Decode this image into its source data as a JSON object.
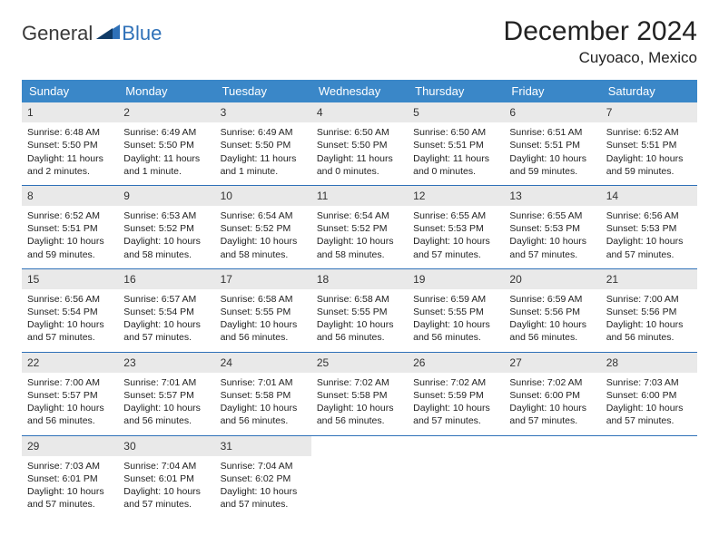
{
  "logo": {
    "general": "General",
    "blue": "Blue"
  },
  "title": "December 2024",
  "location": "Cuyoaco, Mexico",
  "colors": {
    "header_bg": "#3a87c8",
    "header_text": "#ffffff",
    "daynum_bg": "#e9e9e9",
    "rule": "#2f71b8",
    "logo_blue": "#2f71b8",
    "logo_dark": "#0f3a66"
  },
  "weekdays": [
    "Sunday",
    "Monday",
    "Tuesday",
    "Wednesday",
    "Thursday",
    "Friday",
    "Saturday"
  ],
  "weeks": [
    [
      {
        "n": "1",
        "sunrise": "Sunrise: 6:48 AM",
        "sunset": "Sunset: 5:50 PM",
        "daylight": "Daylight: 11 hours and 2 minutes."
      },
      {
        "n": "2",
        "sunrise": "Sunrise: 6:49 AM",
        "sunset": "Sunset: 5:50 PM",
        "daylight": "Daylight: 11 hours and 1 minute."
      },
      {
        "n": "3",
        "sunrise": "Sunrise: 6:49 AM",
        "sunset": "Sunset: 5:50 PM",
        "daylight": "Daylight: 11 hours and 1 minute."
      },
      {
        "n": "4",
        "sunrise": "Sunrise: 6:50 AM",
        "sunset": "Sunset: 5:50 PM",
        "daylight": "Daylight: 11 hours and 0 minutes."
      },
      {
        "n": "5",
        "sunrise": "Sunrise: 6:50 AM",
        "sunset": "Sunset: 5:51 PM",
        "daylight": "Daylight: 11 hours and 0 minutes."
      },
      {
        "n": "6",
        "sunrise": "Sunrise: 6:51 AM",
        "sunset": "Sunset: 5:51 PM",
        "daylight": "Daylight: 10 hours and 59 minutes."
      },
      {
        "n": "7",
        "sunrise": "Sunrise: 6:52 AM",
        "sunset": "Sunset: 5:51 PM",
        "daylight": "Daylight: 10 hours and 59 minutes."
      }
    ],
    [
      {
        "n": "8",
        "sunrise": "Sunrise: 6:52 AM",
        "sunset": "Sunset: 5:51 PM",
        "daylight": "Daylight: 10 hours and 59 minutes."
      },
      {
        "n": "9",
        "sunrise": "Sunrise: 6:53 AM",
        "sunset": "Sunset: 5:52 PM",
        "daylight": "Daylight: 10 hours and 58 minutes."
      },
      {
        "n": "10",
        "sunrise": "Sunrise: 6:54 AM",
        "sunset": "Sunset: 5:52 PM",
        "daylight": "Daylight: 10 hours and 58 minutes."
      },
      {
        "n": "11",
        "sunrise": "Sunrise: 6:54 AM",
        "sunset": "Sunset: 5:52 PM",
        "daylight": "Daylight: 10 hours and 58 minutes."
      },
      {
        "n": "12",
        "sunrise": "Sunrise: 6:55 AM",
        "sunset": "Sunset: 5:53 PM",
        "daylight": "Daylight: 10 hours and 57 minutes."
      },
      {
        "n": "13",
        "sunrise": "Sunrise: 6:55 AM",
        "sunset": "Sunset: 5:53 PM",
        "daylight": "Daylight: 10 hours and 57 minutes."
      },
      {
        "n": "14",
        "sunrise": "Sunrise: 6:56 AM",
        "sunset": "Sunset: 5:53 PM",
        "daylight": "Daylight: 10 hours and 57 minutes."
      }
    ],
    [
      {
        "n": "15",
        "sunrise": "Sunrise: 6:56 AM",
        "sunset": "Sunset: 5:54 PM",
        "daylight": "Daylight: 10 hours and 57 minutes."
      },
      {
        "n": "16",
        "sunrise": "Sunrise: 6:57 AM",
        "sunset": "Sunset: 5:54 PM",
        "daylight": "Daylight: 10 hours and 57 minutes."
      },
      {
        "n": "17",
        "sunrise": "Sunrise: 6:58 AM",
        "sunset": "Sunset: 5:55 PM",
        "daylight": "Daylight: 10 hours and 56 minutes."
      },
      {
        "n": "18",
        "sunrise": "Sunrise: 6:58 AM",
        "sunset": "Sunset: 5:55 PM",
        "daylight": "Daylight: 10 hours and 56 minutes."
      },
      {
        "n": "19",
        "sunrise": "Sunrise: 6:59 AM",
        "sunset": "Sunset: 5:55 PM",
        "daylight": "Daylight: 10 hours and 56 minutes."
      },
      {
        "n": "20",
        "sunrise": "Sunrise: 6:59 AM",
        "sunset": "Sunset: 5:56 PM",
        "daylight": "Daylight: 10 hours and 56 minutes."
      },
      {
        "n": "21",
        "sunrise": "Sunrise: 7:00 AM",
        "sunset": "Sunset: 5:56 PM",
        "daylight": "Daylight: 10 hours and 56 minutes."
      }
    ],
    [
      {
        "n": "22",
        "sunrise": "Sunrise: 7:00 AM",
        "sunset": "Sunset: 5:57 PM",
        "daylight": "Daylight: 10 hours and 56 minutes."
      },
      {
        "n": "23",
        "sunrise": "Sunrise: 7:01 AM",
        "sunset": "Sunset: 5:57 PM",
        "daylight": "Daylight: 10 hours and 56 minutes."
      },
      {
        "n": "24",
        "sunrise": "Sunrise: 7:01 AM",
        "sunset": "Sunset: 5:58 PM",
        "daylight": "Daylight: 10 hours and 56 minutes."
      },
      {
        "n": "25",
        "sunrise": "Sunrise: 7:02 AM",
        "sunset": "Sunset: 5:58 PM",
        "daylight": "Daylight: 10 hours and 56 minutes."
      },
      {
        "n": "26",
        "sunrise": "Sunrise: 7:02 AM",
        "sunset": "Sunset: 5:59 PM",
        "daylight": "Daylight: 10 hours and 57 minutes."
      },
      {
        "n": "27",
        "sunrise": "Sunrise: 7:02 AM",
        "sunset": "Sunset: 6:00 PM",
        "daylight": "Daylight: 10 hours and 57 minutes."
      },
      {
        "n": "28",
        "sunrise": "Sunrise: 7:03 AM",
        "sunset": "Sunset: 6:00 PM",
        "daylight": "Daylight: 10 hours and 57 minutes."
      }
    ],
    [
      {
        "n": "29",
        "sunrise": "Sunrise: 7:03 AM",
        "sunset": "Sunset: 6:01 PM",
        "daylight": "Daylight: 10 hours and 57 minutes."
      },
      {
        "n": "30",
        "sunrise": "Sunrise: 7:04 AM",
        "sunset": "Sunset: 6:01 PM",
        "daylight": "Daylight: 10 hours and 57 minutes."
      },
      {
        "n": "31",
        "sunrise": "Sunrise: 7:04 AM",
        "sunset": "Sunset: 6:02 PM",
        "daylight": "Daylight: 10 hours and 57 minutes."
      },
      null,
      null,
      null,
      null
    ]
  ]
}
